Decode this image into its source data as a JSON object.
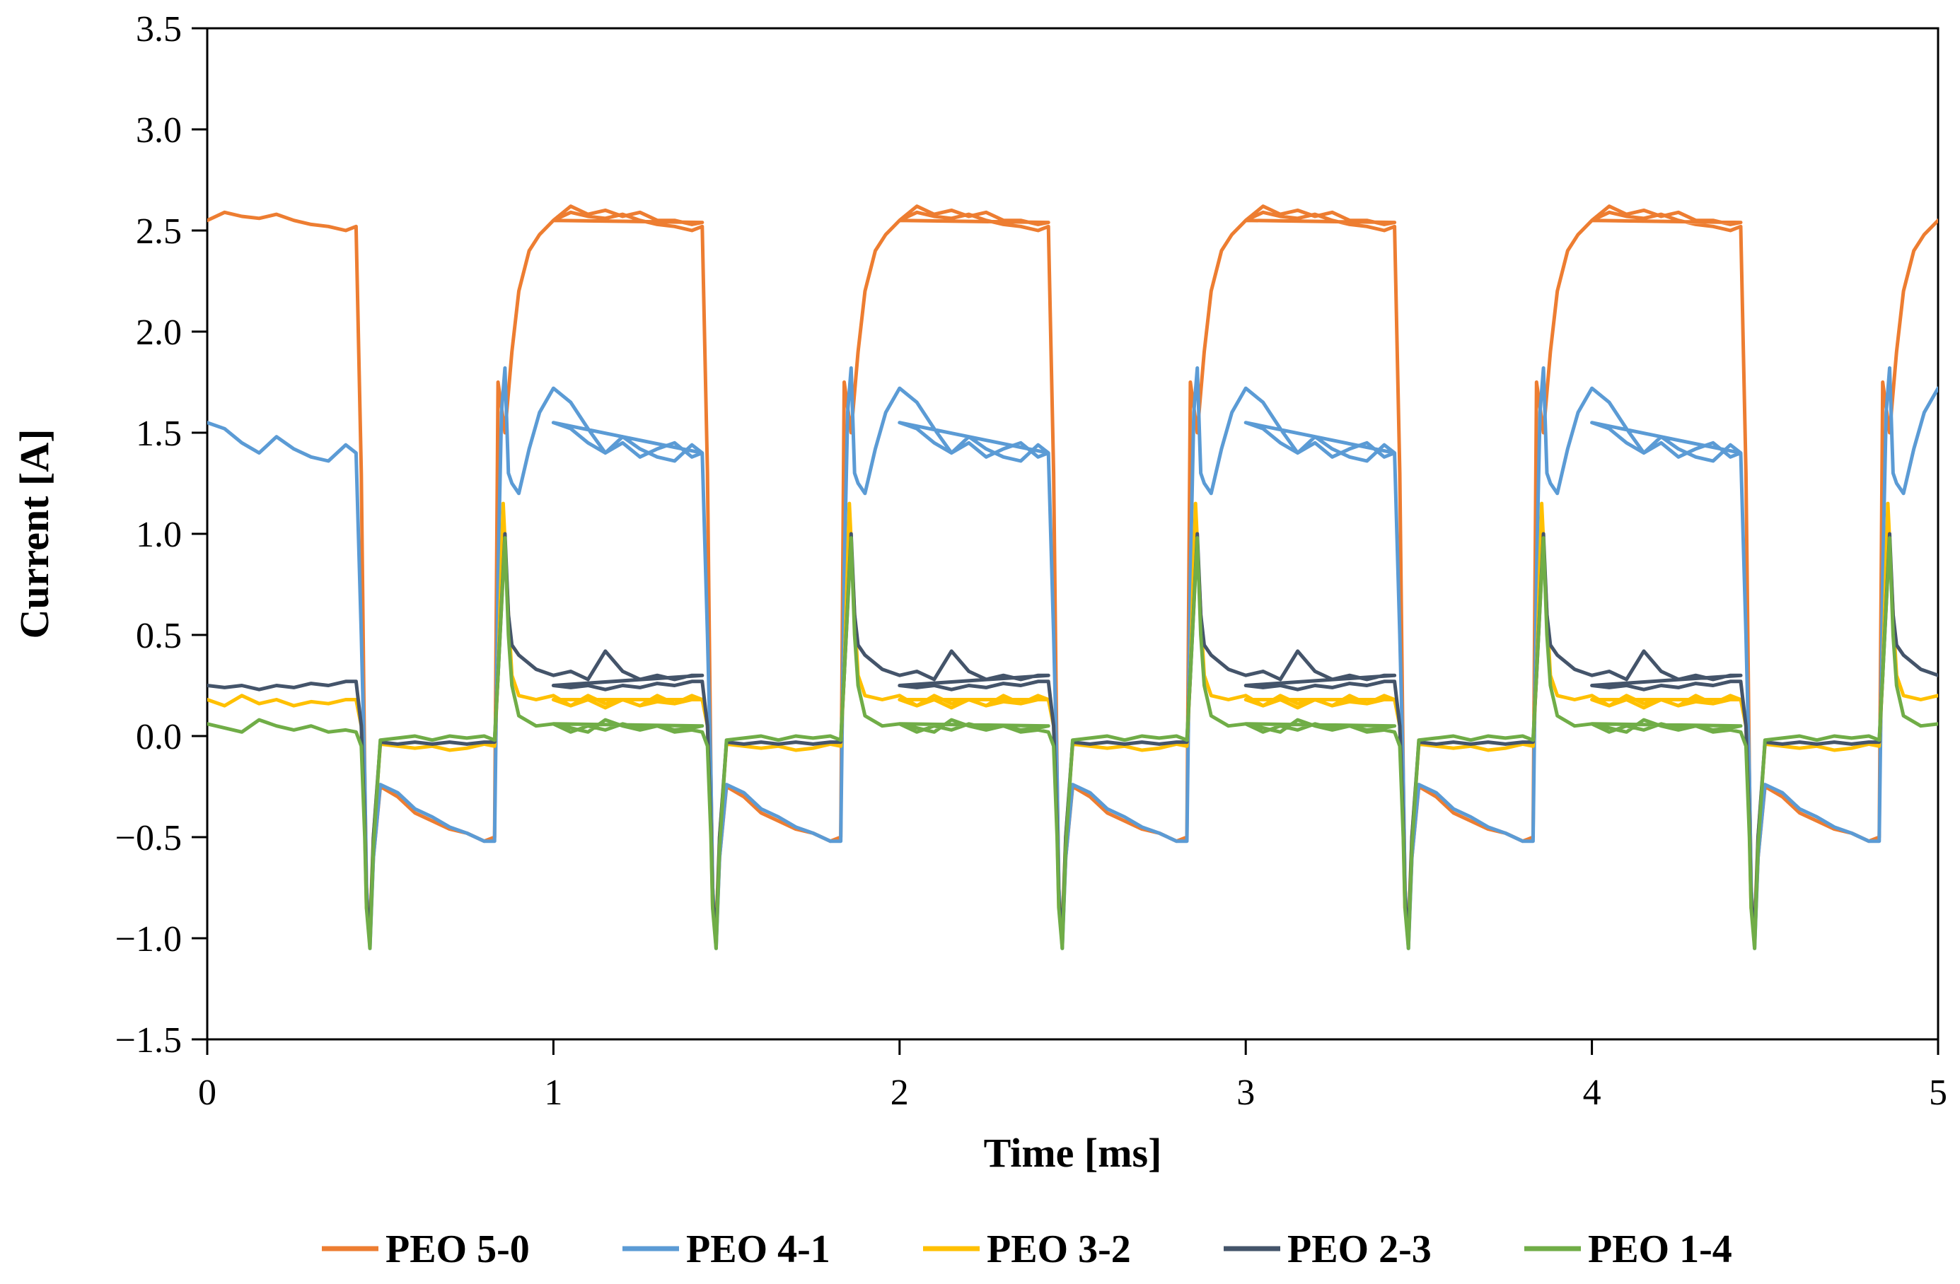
{
  "chart_data": {
    "type": "line",
    "title": "",
    "xlabel": "Time [ms]",
    "ylabel": "Current [A]",
    "xlim": [
      0,
      5
    ],
    "ylim": [
      -1.5,
      3.5
    ],
    "x_ticks": [
      0,
      1,
      2,
      3,
      4,
      5
    ],
    "x_tick_labels": [
      "0",
      "1",
      "2",
      "3",
      "4",
      "5"
    ],
    "y_ticks": [
      -1.5,
      -1.0,
      -0.5,
      0.0,
      0.5,
      1.0,
      1.5,
      2.0,
      2.5,
      3.0,
      3.5
    ],
    "y_tick_labels": [
      "−1.5",
      "−1.0",
      "−0.5",
      "0.0",
      "0.5",
      "1.0",
      "1.5",
      "2.0",
      "2.5",
      "3.0",
      "3.5"
    ],
    "grid": false,
    "legend_position": "bottom",
    "period_ms": 1.0,
    "series": [
      {
        "name": "PEO 5-0",
        "color": "#ED7D31",
        "points": [
          [
            0.0,
            2.55
          ],
          [
            0.05,
            2.59
          ],
          [
            0.1,
            2.57
          ],
          [
            0.15,
            2.56
          ],
          [
            0.2,
            2.58
          ],
          [
            0.25,
            2.55
          ],
          [
            0.3,
            2.53
          ],
          [
            0.35,
            2.52
          ],
          [
            0.4,
            2.5
          ],
          [
            0.43,
            2.52
          ],
          [
            0.445,
            1.3
          ],
          [
            0.455,
            -0.2
          ],
          [
            0.46,
            -0.75
          ],
          [
            0.47,
            -1.02
          ],
          [
            0.48,
            -0.6
          ],
          [
            0.5,
            -0.25
          ],
          [
            0.55,
            -0.3
          ],
          [
            0.6,
            -0.38
          ],
          [
            0.65,
            -0.42
          ],
          [
            0.7,
            -0.46
          ],
          [
            0.75,
            -0.48
          ],
          [
            0.8,
            -0.52
          ],
          [
            0.83,
            -0.5
          ],
          [
            0.84,
            1.75
          ],
          [
            0.86,
            1.5
          ],
          [
            0.88,
            1.9
          ],
          [
            0.9,
            2.2
          ],
          [
            0.93,
            2.4
          ],
          [
            0.96,
            2.48
          ],
          [
            1.0,
            2.55
          ],
          [
            1.05,
            2.62
          ],
          [
            1.1,
            2.58
          ],
          [
            1.15,
            2.6
          ],
          [
            1.2,
            2.57
          ],
          [
            1.25,
            2.59
          ],
          [
            1.3,
            2.55
          ],
          [
            1.35,
            2.55
          ],
          [
            1.4,
            2.53
          ],
          [
            1.43,
            2.54
          ]
        ]
      },
      {
        "name": "PEO 4-1",
        "color": "#5B9BD5",
        "points": [
          [
            0.0,
            1.55
          ],
          [
            0.05,
            1.52
          ],
          [
            0.1,
            1.45
          ],
          [
            0.15,
            1.4
          ],
          [
            0.2,
            1.48
          ],
          [
            0.25,
            1.42
          ],
          [
            0.3,
            1.38
          ],
          [
            0.35,
            1.36
          ],
          [
            0.4,
            1.44
          ],
          [
            0.43,
            1.4
          ],
          [
            0.445,
            0.5
          ],
          [
            0.455,
            -0.2
          ],
          [
            0.46,
            -0.75
          ],
          [
            0.47,
            -1.05
          ],
          [
            0.48,
            -0.6
          ],
          [
            0.5,
            -0.24
          ],
          [
            0.55,
            -0.28
          ],
          [
            0.6,
            -0.36
          ],
          [
            0.65,
            -0.4
          ],
          [
            0.7,
            -0.45
          ],
          [
            0.75,
            -0.48
          ],
          [
            0.8,
            -0.52
          ],
          [
            0.83,
            -0.52
          ],
          [
            0.84,
            0.8
          ],
          [
            0.85,
            1.6
          ],
          [
            0.86,
            1.82
          ],
          [
            0.87,
            1.3
          ],
          [
            0.88,
            1.25
          ],
          [
            0.9,
            1.2
          ],
          [
            0.93,
            1.42
          ],
          [
            0.96,
            1.6
          ],
          [
            1.0,
            1.72
          ],
          [
            1.05,
            1.65
          ],
          [
            1.1,
            1.52
          ],
          [
            1.15,
            1.4
          ],
          [
            1.2,
            1.45
          ],
          [
            1.25,
            1.38
          ],
          [
            1.3,
            1.42
          ],
          [
            1.35,
            1.45
          ],
          [
            1.4,
            1.38
          ],
          [
            1.43,
            1.4
          ]
        ]
      },
      {
        "name": "PEO 3-2",
        "color": "#FFC000",
        "points": [
          [
            0.0,
            0.18
          ],
          [
            0.05,
            0.15
          ],
          [
            0.1,
            0.2
          ],
          [
            0.15,
            0.16
          ],
          [
            0.2,
            0.18
          ],
          [
            0.25,
            0.15
          ],
          [
            0.3,
            0.17
          ],
          [
            0.35,
            0.16
          ],
          [
            0.4,
            0.18
          ],
          [
            0.43,
            0.18
          ],
          [
            0.445,
            0.05
          ],
          [
            0.455,
            -0.45
          ],
          [
            0.46,
            -0.85
          ],
          [
            0.47,
            -0.95
          ],
          [
            0.48,
            -0.5
          ],
          [
            0.5,
            -0.04
          ],
          [
            0.55,
            -0.05
          ],
          [
            0.6,
            -0.06
          ],
          [
            0.65,
            -0.05
          ],
          [
            0.7,
            -0.07
          ],
          [
            0.75,
            -0.06
          ],
          [
            0.8,
            -0.04
          ],
          [
            0.83,
            -0.05
          ],
          [
            0.84,
            0.3
          ],
          [
            0.855,
            1.15
          ],
          [
            0.87,
            0.6
          ],
          [
            0.88,
            0.3
          ],
          [
            0.9,
            0.2
          ],
          [
            0.95,
            0.18
          ],
          [
            1.0,
            0.2
          ],
          [
            1.05,
            0.15
          ],
          [
            1.1,
            0.18
          ],
          [
            1.15,
            0.14
          ],
          [
            1.2,
            0.18
          ],
          [
            1.25,
            0.15
          ],
          [
            1.3,
            0.2
          ],
          [
            1.35,
            0.16
          ],
          [
            1.4,
            0.2
          ],
          [
            1.43,
            0.18
          ]
        ]
      },
      {
        "name": "PEO 2-3",
        "color": "#44546A",
        "points": [
          [
            0.0,
            0.25
          ],
          [
            0.05,
            0.24
          ],
          [
            0.1,
            0.25
          ],
          [
            0.15,
            0.23
          ],
          [
            0.2,
            0.25
          ],
          [
            0.25,
            0.24
          ],
          [
            0.3,
            0.26
          ],
          [
            0.35,
            0.25
          ],
          [
            0.4,
            0.27
          ],
          [
            0.43,
            0.27
          ],
          [
            0.445,
            0.05
          ],
          [
            0.455,
            -0.45
          ],
          [
            0.46,
            -0.8
          ],
          [
            0.47,
            -1.0
          ],
          [
            0.48,
            -0.5
          ],
          [
            0.5,
            -0.03
          ],
          [
            0.55,
            -0.04
          ],
          [
            0.6,
            -0.03
          ],
          [
            0.65,
            -0.04
          ],
          [
            0.7,
            -0.03
          ],
          [
            0.75,
            -0.04
          ],
          [
            0.8,
            -0.03
          ],
          [
            0.83,
            -0.03
          ],
          [
            0.84,
            0.3
          ],
          [
            0.86,
            1.0
          ],
          [
            0.87,
            0.6
          ],
          [
            0.88,
            0.45
          ],
          [
            0.9,
            0.4
          ],
          [
            0.95,
            0.33
          ],
          [
            1.0,
            0.3
          ],
          [
            1.05,
            0.32
          ],
          [
            1.1,
            0.28
          ],
          [
            1.15,
            0.42
          ],
          [
            1.2,
            0.32
          ],
          [
            1.25,
            0.28
          ],
          [
            1.3,
            0.3
          ],
          [
            1.35,
            0.28
          ],
          [
            1.4,
            0.3
          ],
          [
            1.43,
            0.3
          ]
        ]
      },
      {
        "name": "PEO 1-4",
        "color": "#70AD47",
        "points": [
          [
            0.0,
            0.06
          ],
          [
            0.05,
            0.04
          ],
          [
            0.1,
            0.02
          ],
          [
            0.15,
            0.08
          ],
          [
            0.2,
            0.05
          ],
          [
            0.25,
            0.03
          ],
          [
            0.3,
            0.05
          ],
          [
            0.35,
            0.02
          ],
          [
            0.4,
            0.03
          ],
          [
            0.43,
            0.02
          ],
          [
            0.445,
            -0.05
          ],
          [
            0.455,
            -0.5
          ],
          [
            0.46,
            -0.85
          ],
          [
            0.47,
            -1.05
          ],
          [
            0.48,
            -0.55
          ],
          [
            0.5,
            -0.02
          ],
          [
            0.55,
            -0.01
          ],
          [
            0.6,
            0.0
          ],
          [
            0.65,
            -0.02
          ],
          [
            0.7,
            0.0
          ],
          [
            0.75,
            -0.01
          ],
          [
            0.8,
            0.0
          ],
          [
            0.83,
            -0.02
          ],
          [
            0.84,
            0.3
          ],
          [
            0.86,
            0.98
          ],
          [
            0.87,
            0.5
          ],
          [
            0.88,
            0.25
          ],
          [
            0.9,
            0.1
          ],
          [
            0.95,
            0.05
          ],
          [
            1.0,
            0.06
          ],
          [
            1.05,
            0.02
          ],
          [
            1.1,
            0.05
          ],
          [
            1.15,
            0.03
          ],
          [
            1.2,
            0.06
          ],
          [
            1.25,
            0.04
          ],
          [
            1.3,
            0.05
          ],
          [
            1.35,
            0.03
          ],
          [
            1.4,
            0.04
          ],
          [
            1.43,
            0.05
          ]
        ]
      }
    ]
  }
}
